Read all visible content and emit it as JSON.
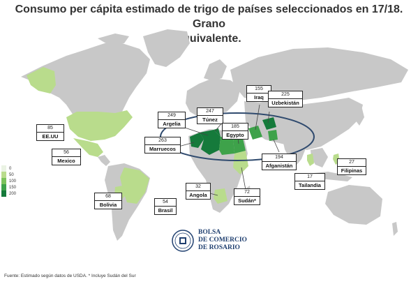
{
  "title": {
    "line1": "Consumo per cápita estimado de trigo de países seleccionados en 17/18. Grano",
    "line2": "equivalente."
  },
  "legend": {
    "items": [
      {
        "label": "0",
        "color": "#eaf3e3"
      },
      {
        "label": "50",
        "color": "#b9dc8c"
      },
      {
        "label": "100",
        "color": "#7cc35c"
      },
      {
        "label": "150",
        "color": "#3ea24a"
      },
      {
        "label": "200",
        "color": "#157a3b"
      }
    ]
  },
  "countries": [
    {
      "value": "85",
      "name": "EE.UU"
    },
    {
      "value": "56",
      "name": "Mexico"
    },
    {
      "value": "68",
      "name": "Bolivia"
    },
    {
      "value": "54",
      "name": "Brasil"
    },
    {
      "value": "32",
      "name": "Angola"
    },
    {
      "value": "72",
      "name": "Sudán*"
    },
    {
      "value": "263",
      "name": "Marruecos"
    },
    {
      "value": "249",
      "name": "Argelia"
    },
    {
      "value": "247",
      "name": "Túnez"
    },
    {
      "value": "185",
      "name": "Egypto"
    },
    {
      "value": "155",
      "name": "Iraq"
    },
    {
      "value": "225",
      "name": "Uzbekistán"
    },
    {
      "value": "194",
      "name": "Afganistán"
    },
    {
      "value": "27",
      "name": "Filipinas"
    },
    {
      "value": "17",
      "name": "Tailandia"
    }
  ],
  "logo": {
    "line1": "BOLSA",
    "line2": "DE COMERCIO",
    "line3": "DE ROSARIO"
  },
  "footnote": "Fuente: Estimado según datos de USDA. * Incluye Sudán del Sur",
  "colors": {
    "land": "#c8c8c8",
    "ellipse": "#2f4a6e",
    "accent_dark": "#157a3b",
    "accent_light": "#b9dc8c"
  }
}
